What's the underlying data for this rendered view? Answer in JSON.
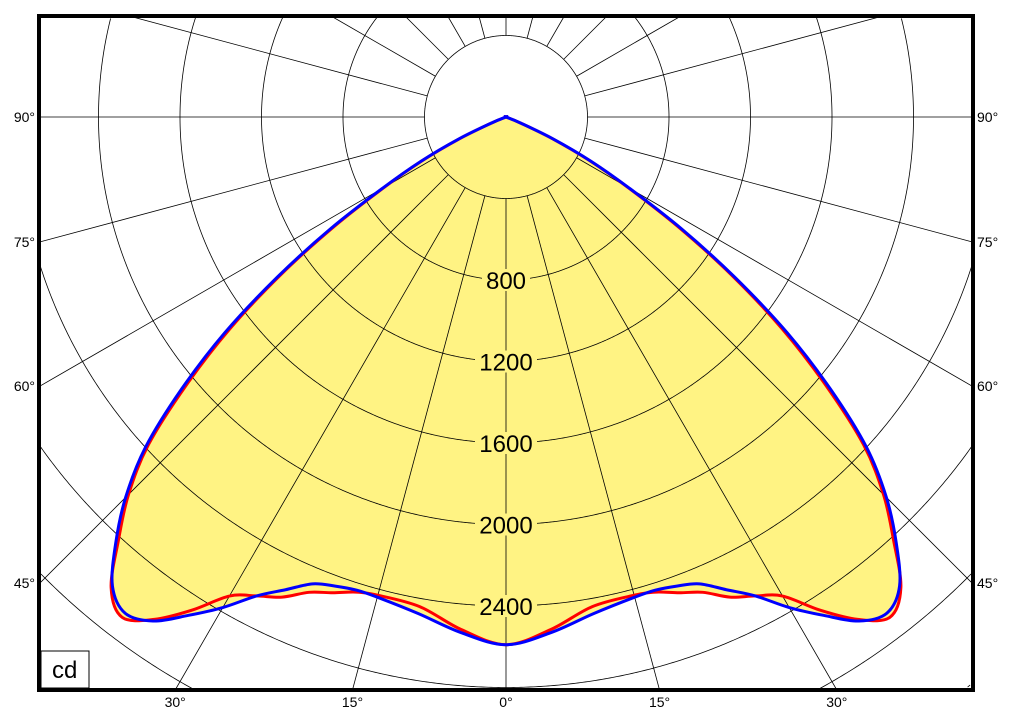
{
  "chart_data": {
    "type": "polar",
    "unit_label": "cd",
    "angular_unit": "degrees",
    "radial_range": [
      0,
      3600
    ],
    "radial_ring_step": 400,
    "radial_tick_labels": [
      "800",
      "1200",
      "1600",
      "2000",
      "2400"
    ],
    "radial_tick_values": [
      800,
      1200,
      1600,
      2000,
      2400
    ],
    "angle_grid_step": 15,
    "side_angle_labels": [
      "90°",
      "75°",
      "60°",
      "45°"
    ],
    "side_angle_values": [
      90,
      75,
      60,
      45
    ],
    "bottom_angle_labels": [
      "30°",
      "15°",
      "0°",
      "15°",
      "30°"
    ],
    "bottom_angle_values": [
      -30,
      -15,
      0,
      15,
      30
    ],
    "symmetric": true,
    "fill_color": "#fff383",
    "grid": true,
    "series": [
      {
        "color": "#ff0000",
        "angles": [
          0,
          5,
          10,
          15,
          17.5,
          20,
          22.5,
          25,
          27.5,
          30,
          32.5,
          35,
          37.5,
          40,
          42.5,
          45,
          47.5,
          50,
          52.5,
          55,
          57.5,
          60,
          62.5,
          65,
          67.5,
          70,
          90
        ],
        "values": [
          2590,
          2525,
          2440,
          2430,
          2445,
          2485,
          2525,
          2600,
          2650,
          2715,
          2870,
          3010,
          3095,
          3015,
          2815,
          2620,
          2380,
          2050,
          1710,
          1350,
          1000,
          690,
          460,
          250,
          75,
          0,
          0
        ]
      },
      {
        "color": "#0000ff",
        "angles": [
          0,
          5,
          10,
          15,
          17.5,
          20,
          22.5,
          25,
          27.5,
          30,
          32.5,
          35,
          37.5,
          40,
          42.5,
          45,
          47.5,
          50,
          52.5,
          55,
          57.5,
          60,
          62.5,
          65,
          67.5,
          70,
          90
        ],
        "values": [
          2590,
          2540,
          2475,
          2440,
          2435,
          2450,
          2480,
          2560,
          2650,
          2780,
          2900,
          3020,
          3070,
          3005,
          2835,
          2640,
          2400,
          2080,
          1740,
          1370,
          1020,
          700,
          470,
          260,
          80,
          0,
          0
        ]
      }
    ]
  }
}
